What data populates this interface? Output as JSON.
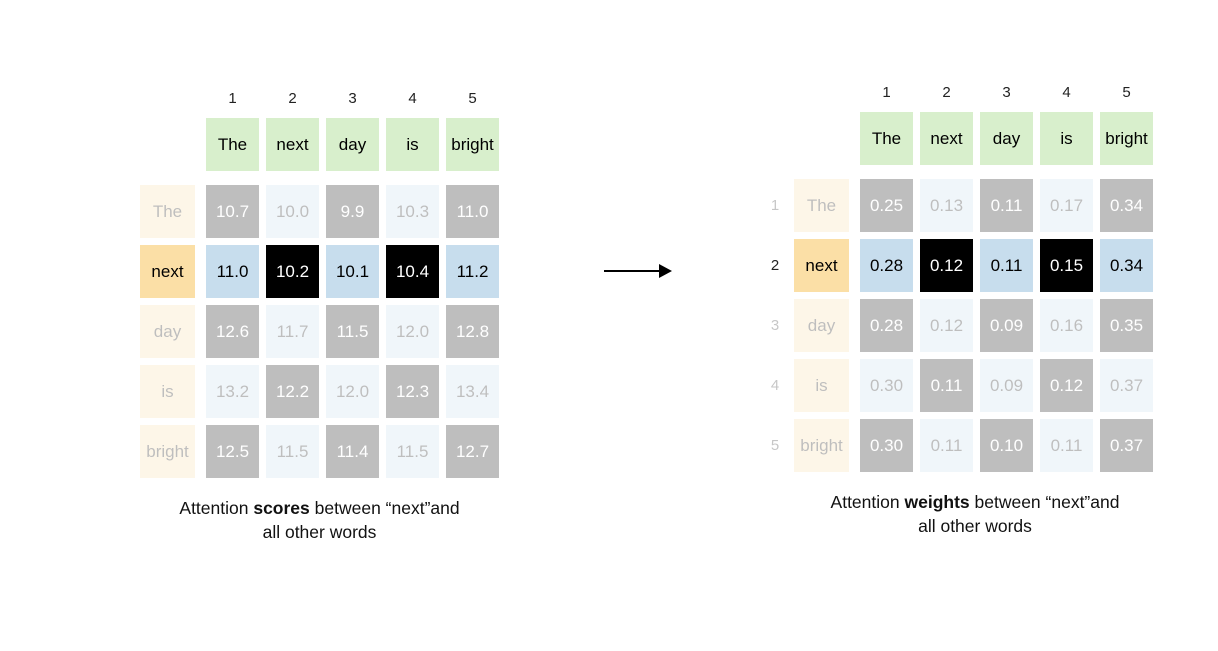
{
  "colors": {
    "green": "#d8efcc",
    "orange": "#fbdfa6",
    "blue": "#c7dded",
    "cellblack": "#000000",
    "captiontext": "#111111"
  },
  "left": {
    "column_numbers": [
      "1",
      "2",
      "3",
      "4",
      "5"
    ],
    "column_words": [
      "The",
      "next",
      "day",
      "is",
      "bright"
    ],
    "rows": [
      {
        "label": "The",
        "values": [
          "10.7",
          "10.0",
          "9.9",
          "10.3",
          "11.0"
        ]
      },
      {
        "label": "next",
        "values": [
          "11.0",
          "10.2",
          "10.1",
          "10.4",
          "11.2"
        ]
      },
      {
        "label": "day",
        "values": [
          "12.6",
          "11.7",
          "11.5",
          "12.0",
          "12.8"
        ]
      },
      {
        "label": "is",
        "values": [
          "13.2",
          "12.2",
          "12.0",
          "12.3",
          "13.4"
        ]
      },
      {
        "label": "bright",
        "values": [
          "12.5",
          "11.5",
          "11.4",
          "11.5",
          "12.7"
        ]
      }
    ],
    "caption": {
      "pre": "Attention ",
      "bold": "scores",
      "post": " between “next”and",
      "line2": "all other words"
    }
  },
  "right": {
    "column_numbers": [
      "1",
      "2",
      "3",
      "4",
      "5"
    ],
    "column_words": [
      "The",
      "next",
      "day",
      "is",
      "bright"
    ],
    "row_numbers": [
      "1",
      "2",
      "3",
      "4",
      "5"
    ],
    "rows": [
      {
        "label": "The",
        "values": [
          "0.25",
          "0.13",
          "0.11",
          "0.17",
          "0.34"
        ]
      },
      {
        "label": "next",
        "values": [
          "0.28",
          "0.12",
          "0.11",
          "0.15",
          "0.34"
        ]
      },
      {
        "label": "day",
        "values": [
          "0.28",
          "0.12",
          "0.09",
          "0.16",
          "0.35"
        ]
      },
      {
        "label": "is",
        "values": [
          "0.30",
          "0.11",
          "0.09",
          "0.12",
          "0.37"
        ]
      },
      {
        "label": "bright",
        "values": [
          "0.30",
          "0.11",
          "0.10",
          "0.11",
          "0.37"
        ]
      }
    ],
    "caption": {
      "pre": "Attention ",
      "bold": "weights",
      "post": " between “next”and",
      "line2": "all other words"
    }
  }
}
